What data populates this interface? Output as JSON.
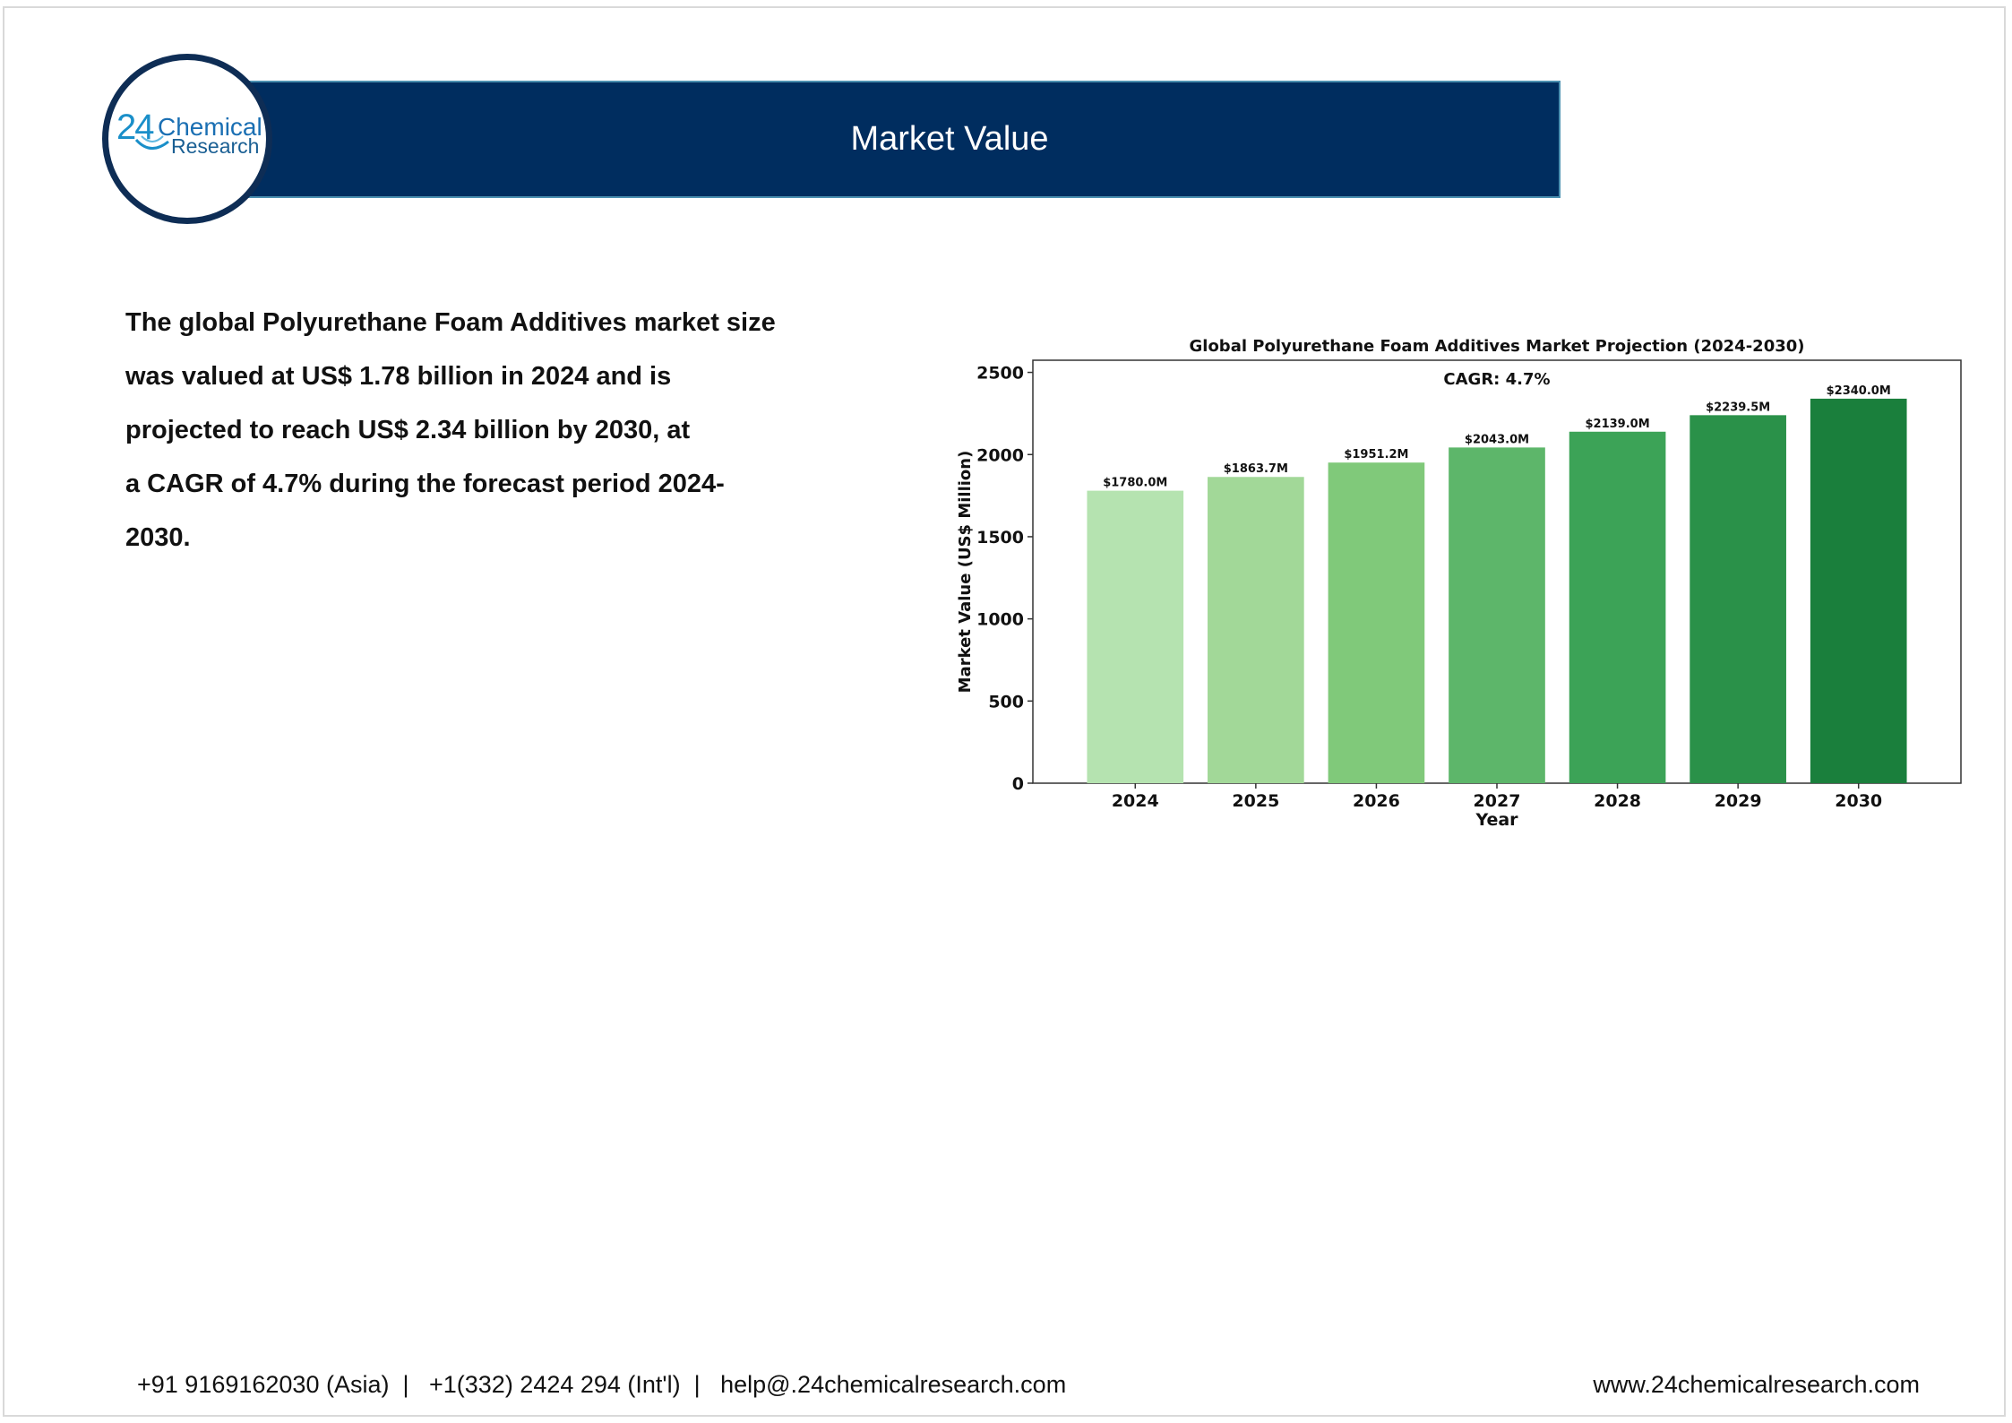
{
  "header": {
    "title": "Market Value"
  },
  "logo": {
    "number": "24",
    "word1": "Chemical",
    "word2": "Research"
  },
  "description": {
    "lines": [
      "The global Polyurethane Foam Additives market size",
      "was valued at US$ 1.78 billion in 2024 and is",
      "projected to reach US$ 2.34 billion by 2030, at",
      "a CAGR of 4.7% during the forecast period 2024-",
      "2030."
    ]
  },
  "chart_data": {
    "type": "bar",
    "title": "Global Polyurethane Foam Additives Market Projection (2024-2030)",
    "annotation": "CAGR: 4.7%",
    "xlabel": "Year",
    "ylabel": "Market Value (US$ Million)",
    "categories": [
      "2024",
      "2025",
      "2026",
      "2027",
      "2028",
      "2029",
      "2030"
    ],
    "values": [
      1780.0,
      1863.7,
      1951.2,
      2043.0,
      2139.0,
      2239.5,
      2340.0
    ],
    "data_labels": [
      "$1780.0M",
      "$1863.7M",
      "$1951.2M",
      "$2043.0M",
      "$2139.0M",
      "$2239.5M",
      "$2340.0M"
    ],
    "yticks": [
      0,
      500,
      1000,
      1500,
      2000,
      2500
    ],
    "ylim": [
      0,
      2574
    ],
    "grid": false,
    "colors": [
      "#b5e3b0",
      "#a2d898",
      "#80c97a",
      "#5db66a",
      "#3ca357",
      "#2a9149",
      "#1a7f3c"
    ]
  },
  "footer": {
    "contact": "+91 9169162030 (Asia)  |   +1(332) 2424 294 (Int'l)  |   help@.24chemicalresearch.com",
    "website": "www.24chemicalresearch.com"
  }
}
